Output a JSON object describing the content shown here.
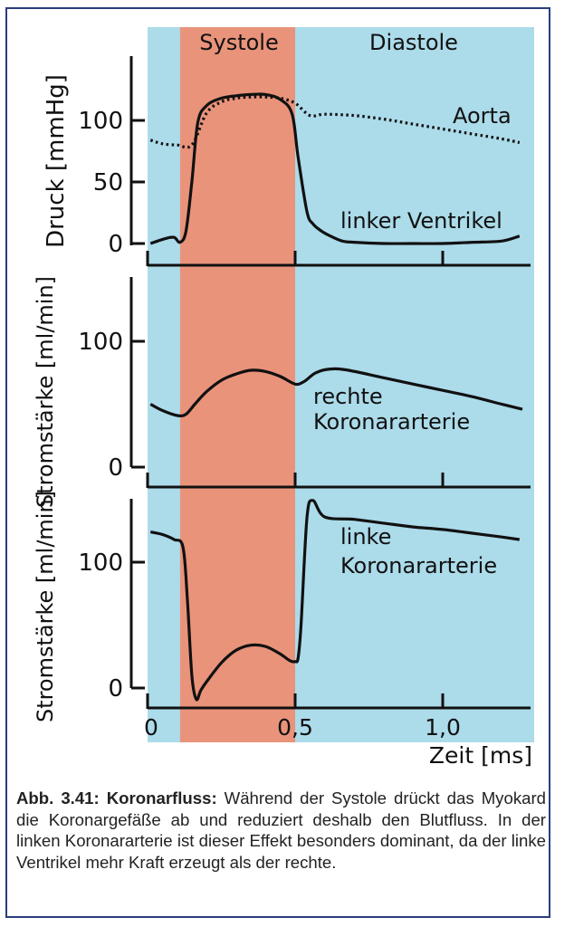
{
  "colors": {
    "background": "#acdbea",
    "systole_band": "#e9937b",
    "frame": "#2b3d7a",
    "curve": "#111111"
  },
  "chart_data": [
    {
      "type": "line",
      "phases": [
        "Systole",
        "Diastole"
      ],
      "phase_boundaries_ms": [
        0.11,
        0.5
      ],
      "ylabel": "Druck [mmHg]",
      "yticks": [
        0,
        50,
        100
      ],
      "series": [
        {
          "name": "Aorta",
          "style": "dotted",
          "x": [
            0.01,
            0.05,
            0.1,
            0.15,
            0.2,
            0.25,
            0.3,
            0.35,
            0.4,
            0.45,
            0.5,
            0.55,
            0.6,
            0.7,
            0.8,
            0.9,
            1.0,
            1.1,
            1.2,
            1.26
          ],
          "y": [
            84,
            81,
            80,
            80,
            106,
            115,
            118,
            119,
            119,
            118,
            114,
            104,
            105,
            104,
            101,
            97,
            93,
            89,
            85,
            82
          ]
        },
        {
          "name": "linker Ventrikel",
          "style": "solid",
          "x": [
            0.01,
            0.06,
            0.09,
            0.11,
            0.13,
            0.15,
            0.17,
            0.2,
            0.25,
            0.3,
            0.35,
            0.4,
            0.45,
            0.49,
            0.51,
            0.54,
            0.56,
            0.59,
            0.62,
            0.66,
            0.7,
            0.8,
            0.9,
            1.0,
            1.1,
            1.2,
            1.26
          ],
          "y": [
            0,
            4,
            5,
            1,
            10,
            50,
            98,
            112,
            118,
            120,
            121,
            121,
            117,
            105,
            70,
            26,
            16,
            10,
            6,
            2,
            1,
            0,
            0,
            0,
            1,
            2,
            6
          ]
        }
      ]
    },
    {
      "type": "line",
      "ylabel": "Stromstärke [ml/min]",
      "yticks": [
        0,
        100
      ],
      "series": [
        {
          "name": "rechte Koronararterie",
          "x": [
            0.01,
            0.05,
            0.1,
            0.13,
            0.16,
            0.2,
            0.25,
            0.3,
            0.35,
            0.4,
            0.45,
            0.5,
            0.53,
            0.57,
            0.62,
            0.68,
            0.8,
            0.9,
            1.0,
            1.1,
            1.2,
            1.27
          ],
          "y": [
            50,
            45,
            41,
            42,
            50,
            60,
            69,
            74,
            77,
            76,
            72,
            66,
            68,
            75,
            78,
            77,
            71,
            66,
            61,
            56,
            50,
            46
          ]
        }
      ]
    },
    {
      "type": "line",
      "ylabel": "Stromstärke [ml/min]",
      "yticks": [
        0,
        100
      ],
      "xlabel": "Zeit [ms]",
      "xtick_labels": [
        "0",
        "0,5",
        "1,0"
      ],
      "xticks": [
        0,
        0.5,
        1.0
      ],
      "series": [
        {
          "name": "linke Koronararterie",
          "x": [
            0.01,
            0.05,
            0.09,
            0.12,
            0.135,
            0.15,
            0.165,
            0.18,
            0.2,
            0.25,
            0.3,
            0.35,
            0.4,
            0.45,
            0.48,
            0.5,
            0.51,
            0.52,
            0.54,
            0.56,
            0.6,
            0.7,
            0.8,
            0.9,
            1.0,
            1.1,
            1.2,
            1.26
          ],
          "y": [
            124,
            122,
            118,
            112,
            70,
            10,
            -9,
            -2,
            5,
            20,
            30,
            34,
            33,
            27,
            22,
            21,
            24,
            50,
            135,
            149,
            136,
            134,
            131,
            128,
            126,
            123,
            120,
            118
          ]
        }
      ]
    }
  ],
  "caption": {
    "label": "Abb. 3.41: Koronarfluss:",
    "text": " Während der Systole drückt das Myokard die Koronargefäße ab und reduziert deshalb den Blutfluss. In der linken Koronararterie ist dieser Effekt besonders dominant, da der linke Ventrikel mehr Kraft erzeugt als der rechte."
  }
}
